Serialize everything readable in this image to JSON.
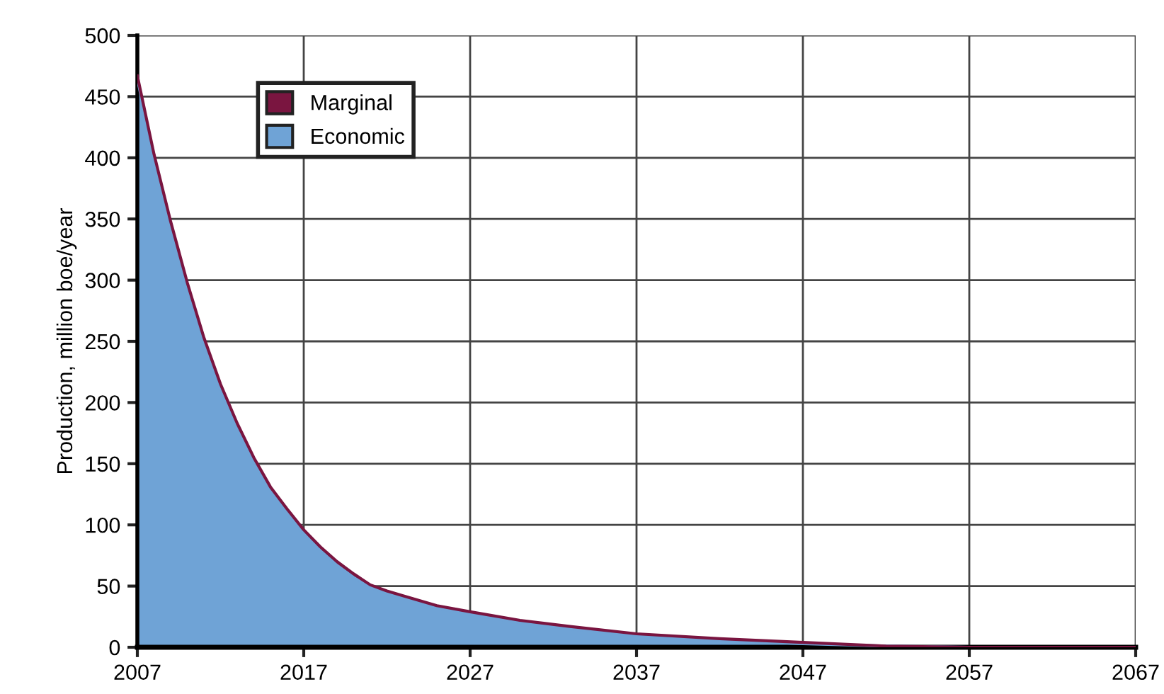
{
  "chart_data": {
    "type": "area",
    "stacked": true,
    "ylabel": "Production, million boe/year",
    "x": [
      2007,
      2008,
      2009,
      2010,
      2011,
      2012,
      2013,
      2014,
      2015,
      2016,
      2017,
      2018,
      2019,
      2020,
      2021,
      2022,
      2023,
      2025,
      2027,
      2030,
      2033,
      2037,
      2042,
      2047,
      2052,
      2057,
      2067
    ],
    "series": [
      {
        "name": "Economic",
        "color": "#6fa3d6",
        "values": [
          465,
          400,
          345,
          295,
          250,
          212,
          180,
          152,
          128,
          110,
          93,
          79,
          67,
          57,
          49,
          44,
          40,
          32,
          27,
          20,
          15,
          10,
          6,
          3,
          1,
          0,
          0
        ]
      },
      {
        "name": "Marginal",
        "color": "#7a1540",
        "values": [
          2,
          3,
          3,
          3,
          3,
          3,
          3,
          3,
          3,
          3,
          3,
          3,
          3,
          3,
          2,
          2,
          2,
          2,
          2,
          2,
          2,
          1,
          1,
          1,
          0,
          0,
          0
        ]
      }
    ],
    "xlim": [
      2007,
      2067
    ],
    "xticks": [
      2007,
      2017,
      2027,
      2037,
      2047,
      2057,
      2067
    ],
    "ylim": [
      0,
      500
    ],
    "yticks": [
      0,
      50,
      100,
      150,
      200,
      250,
      300,
      350,
      400,
      450,
      500
    ],
    "grid": true,
    "legend": "top left"
  }
}
